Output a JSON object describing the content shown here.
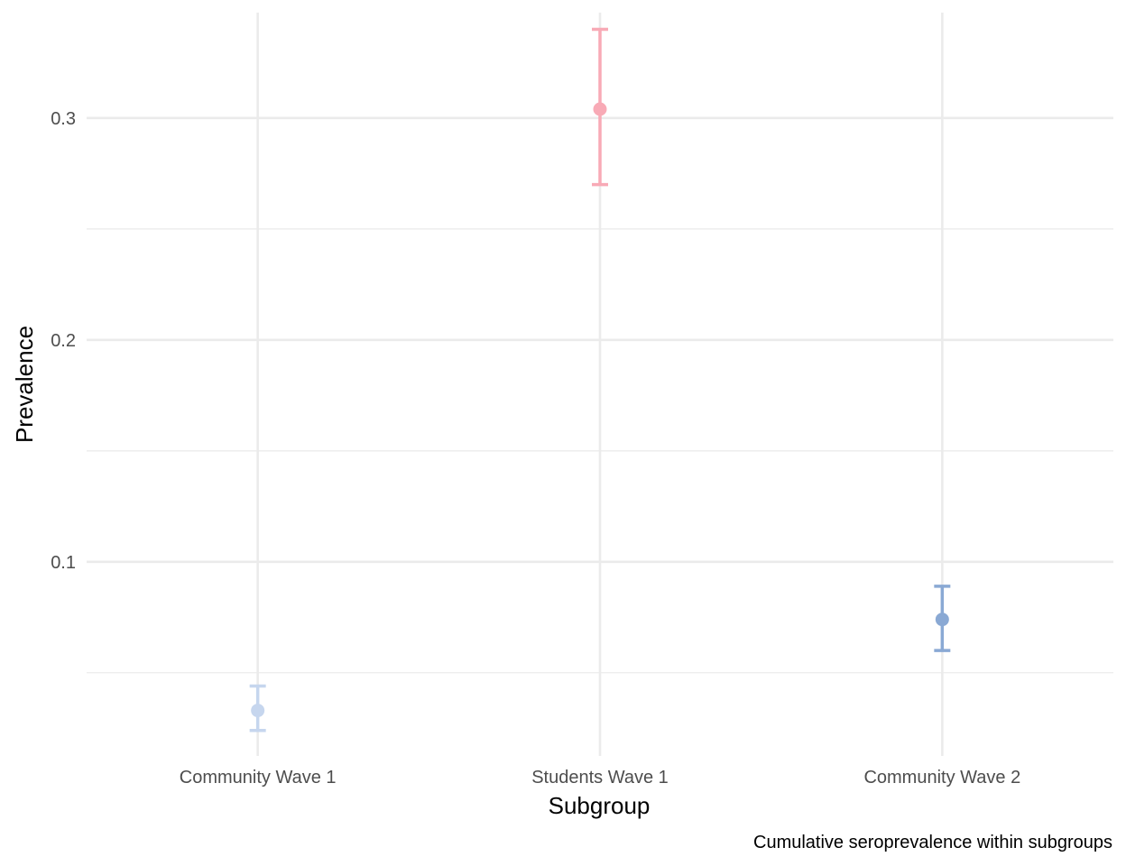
{
  "chart_data": {
    "type": "scatter",
    "subtype": "pointrange",
    "title": "",
    "caption": "Cumulative seroprevalence within subgroups",
    "xlabel": "Subgroup",
    "ylabel": "Prevalence",
    "categories": [
      "Community Wave 1",
      "Students Wave 1",
      "Community Wave 2"
    ],
    "values": [
      0.033,
      0.304,
      0.074
    ],
    "lower": [
      0.024,
      0.27,
      0.06
    ],
    "upper": [
      0.044,
      0.34,
      0.089
    ],
    "colors": [
      "#c6d6ee",
      "#f8aab6",
      "#8aa9d4"
    ],
    "ylim": [
      0.0125,
      0.3475
    ],
    "yticks": [
      0.1,
      0.2,
      0.3
    ],
    "ytick_labels": [
      "0.1",
      "0.2",
      "0.3"
    ],
    "grid": true,
    "legend": "none"
  }
}
